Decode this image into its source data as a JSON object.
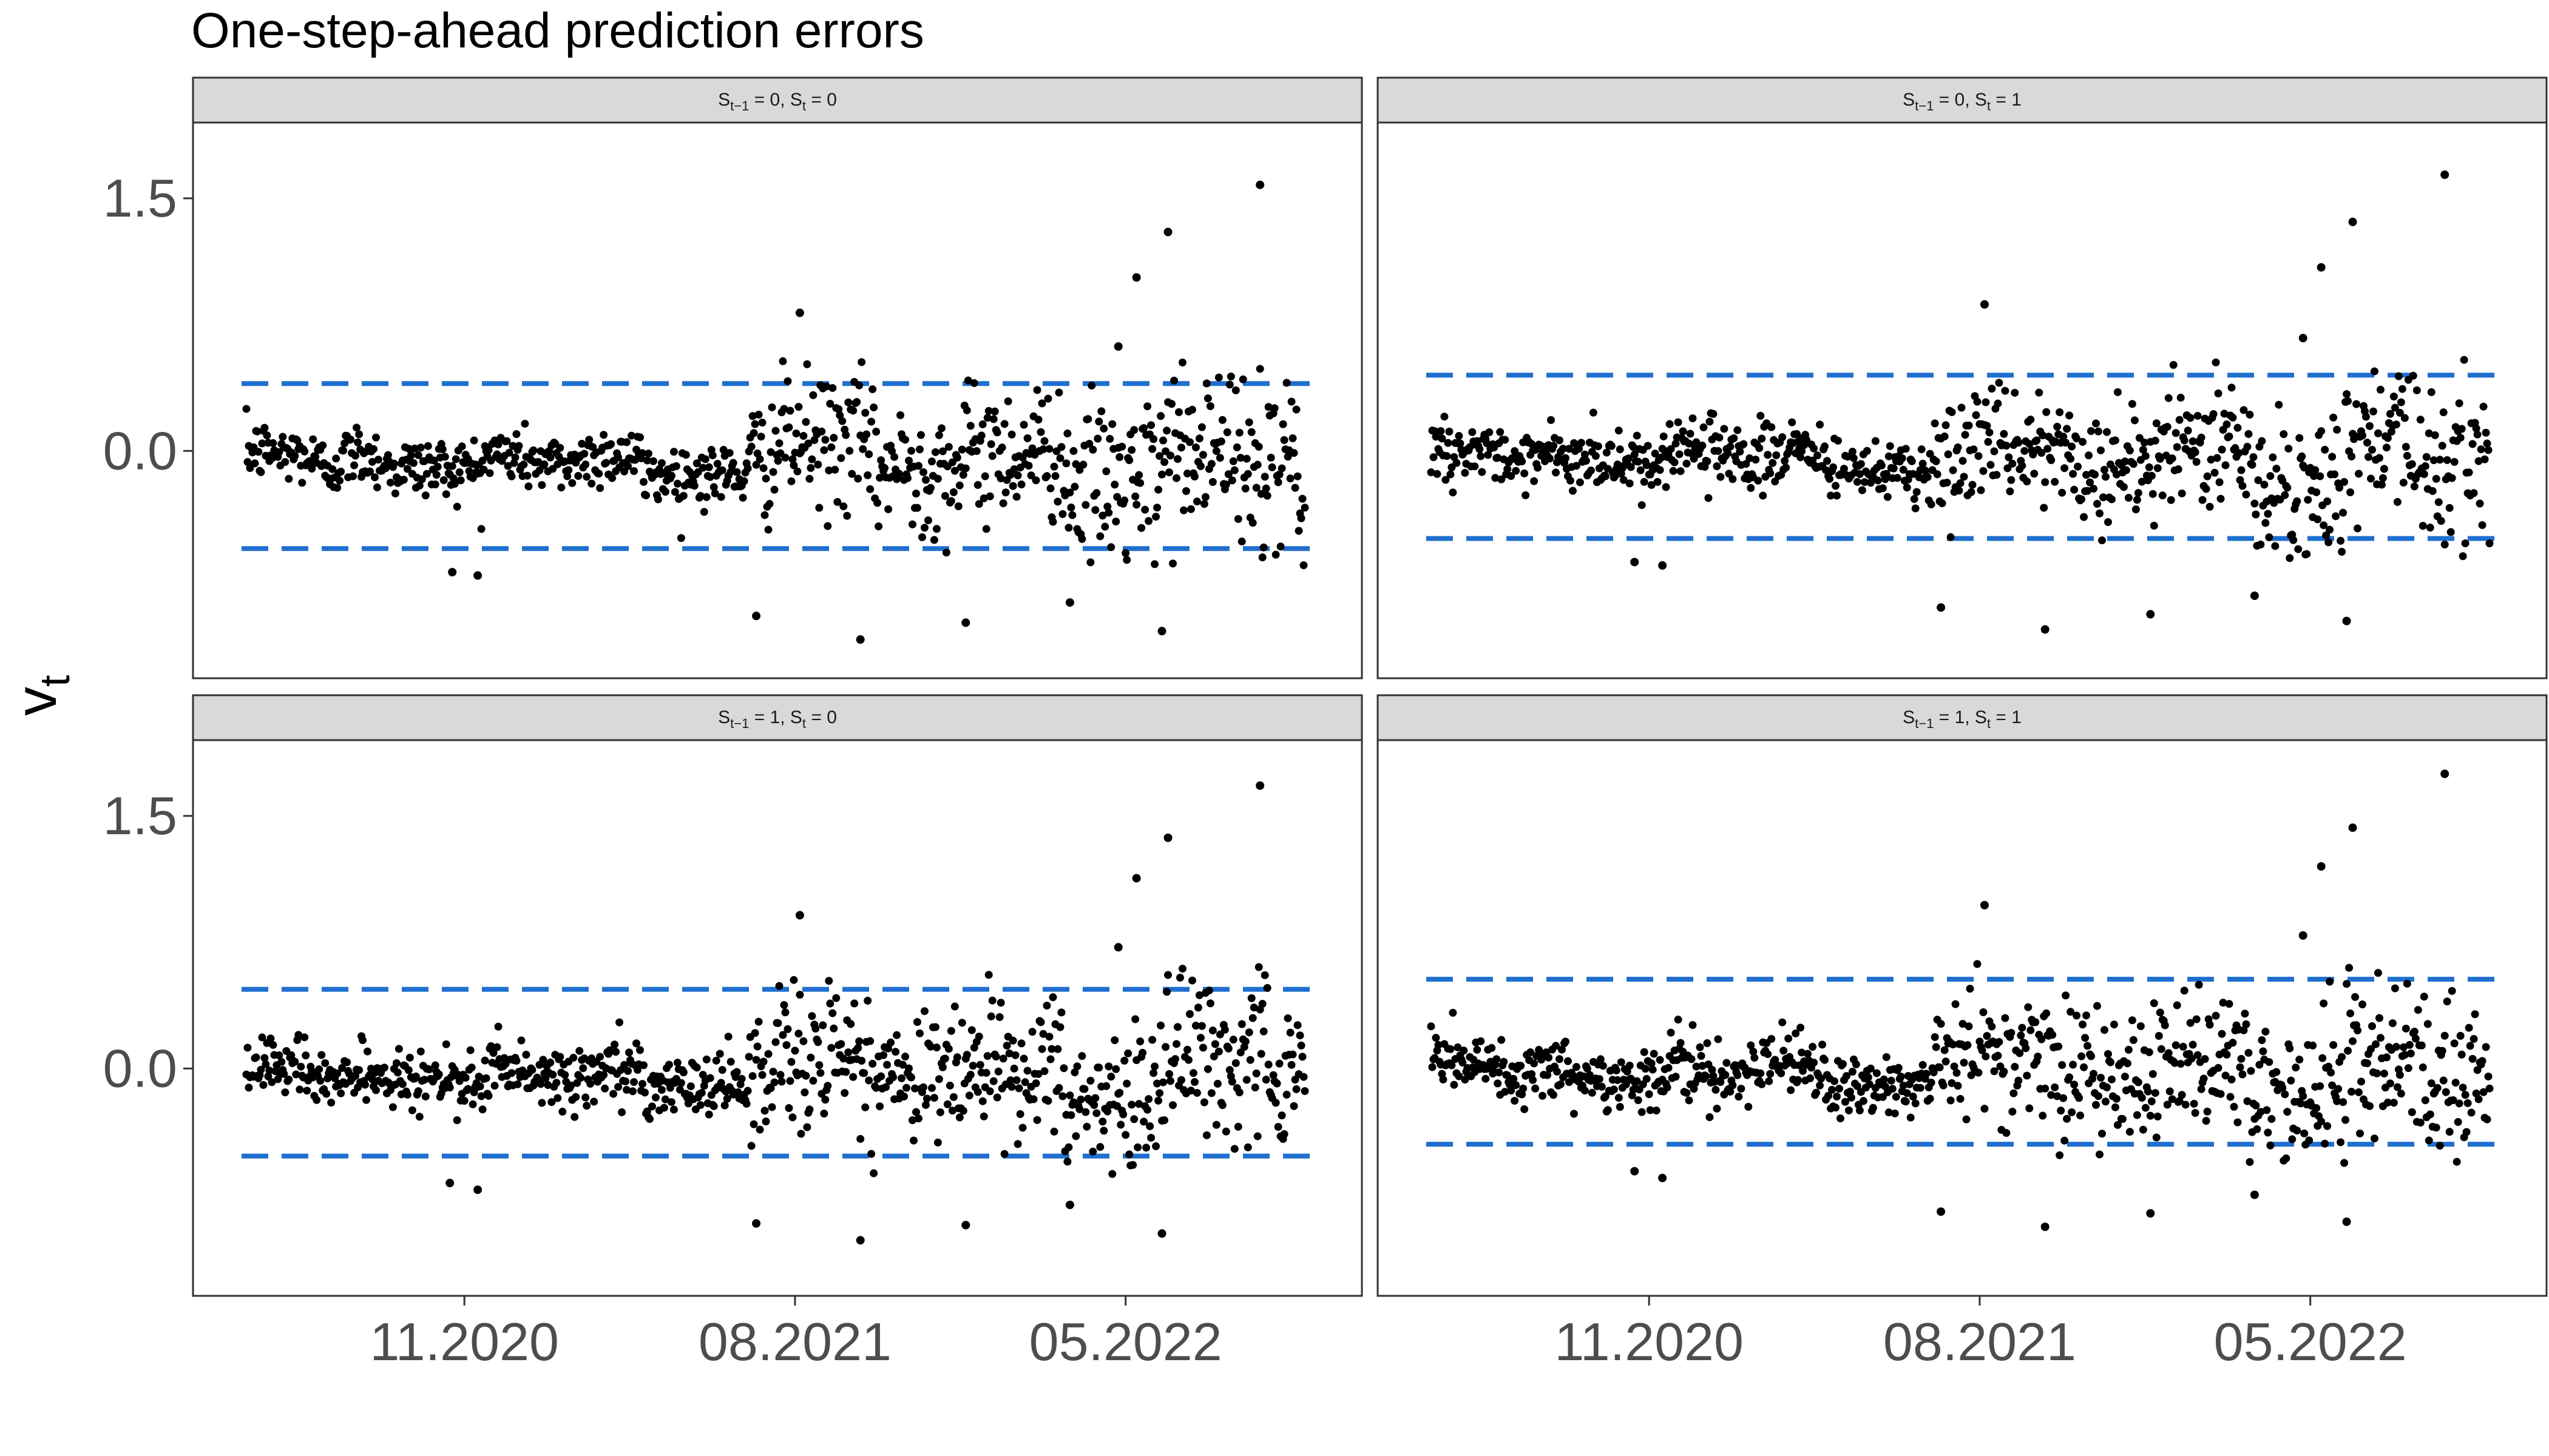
{
  "chart_data": {
    "type": "scatter",
    "title": "One-step-ahead prediction errors",
    "xlabel": "",
    "ylabel": "v",
    "ylabel_sub": "t",
    "x_ticks": [
      "11.2020",
      "08.2021",
      "05.2022"
    ],
    "y_ticks": [
      "0.0",
      "1.5"
    ],
    "grid": false,
    "point_color": "#000000",
    "band_color": "#1f6fcf",
    "panels": [
      {
        "strip": {
          "a": "S",
          "a_sub": "t−1",
          "b": " = 0, S",
          "b_sub": "t",
          "c": " = 0"
        },
        "band": [
          -0.58,
          0.4
        ],
        "outliers": [
          {
            "x": "2020-10-22",
            "y": -0.72
          },
          {
            "x": "2020-11-12",
            "y": -0.74
          },
          {
            "x": "2021-06-30",
            "y": -0.98
          },
          {
            "x": "2021-08-05",
            "y": 0.82
          },
          {
            "x": "2021-09-24",
            "y": -1.12
          },
          {
            "x": "2021-12-20",
            "y": -1.02
          },
          {
            "x": "2022-03-16",
            "y": -0.9
          },
          {
            "x": "2022-04-25",
            "y": 0.62
          },
          {
            "x": "2022-05-10",
            "y": 1.03
          },
          {
            "x": "2022-05-31",
            "y": -1.07
          },
          {
            "x": "2022-06-05",
            "y": 1.3
          },
          {
            "x": "2022-08-20",
            "y": 1.58
          }
        ]
      },
      {
        "strip": {
          "a": "S",
          "a_sub": "t−1",
          "b": " = 0, S",
          "b_sub": "t",
          "c": " = 1"
        },
        "band": [
          -0.52,
          0.45
        ],
        "outliers": [
          {
            "x": "2020-10-20",
            "y": -0.66
          },
          {
            "x": "2020-11-12",
            "y": -0.68
          },
          {
            "x": "2021-06-30",
            "y": -0.93
          },
          {
            "x": "2021-08-05",
            "y": 0.87
          },
          {
            "x": "2021-09-24",
            "y": -1.06
          },
          {
            "x": "2021-12-20",
            "y": -0.97
          },
          {
            "x": "2022-03-16",
            "y": -0.86
          },
          {
            "x": "2022-04-25",
            "y": 0.67
          },
          {
            "x": "2022-05-10",
            "y": 1.09
          },
          {
            "x": "2022-05-31",
            "y": -1.01
          },
          {
            "x": "2022-06-05",
            "y": 1.36
          },
          {
            "x": "2022-08-20",
            "y": 1.64
          }
        ]
      },
      {
        "strip": {
          "a": "S",
          "a_sub": "t−1",
          "b": " = 1, S",
          "b_sub": "t",
          "c": " = 0"
        },
        "band": [
          -0.52,
          0.47
        ],
        "outliers": [
          {
            "x": "2020-10-20",
            "y": -0.68
          },
          {
            "x": "2020-11-12",
            "y": -0.72
          },
          {
            "x": "2021-06-30",
            "y": -0.92
          },
          {
            "x": "2021-08-05",
            "y": 0.91
          },
          {
            "x": "2021-09-24",
            "y": -1.02
          },
          {
            "x": "2021-12-20",
            "y": -0.93
          },
          {
            "x": "2022-03-16",
            "y": -0.81
          },
          {
            "x": "2022-04-25",
            "y": 0.72
          },
          {
            "x": "2022-05-10",
            "y": 1.13
          },
          {
            "x": "2022-05-31",
            "y": -0.98
          },
          {
            "x": "2022-06-05",
            "y": 1.37
          },
          {
            "x": "2022-08-20",
            "y": 1.68
          }
        ]
      },
      {
        "strip": {
          "a": "S",
          "a_sub": "t−1",
          "b": " = 1, S",
          "b_sub": "t",
          "c": " = 1"
        },
        "band": [
          -0.45,
          0.53
        ],
        "outliers": [
          {
            "x": "2020-10-20",
            "y": -0.61
          },
          {
            "x": "2020-11-12",
            "y": -0.65
          },
          {
            "x": "2021-06-30",
            "y": -0.85
          },
          {
            "x": "2021-08-05",
            "y": 0.97
          },
          {
            "x": "2021-09-24",
            "y": -0.94
          },
          {
            "x": "2021-12-20",
            "y": -0.86
          },
          {
            "x": "2022-03-16",
            "y": -0.75
          },
          {
            "x": "2022-04-25",
            "y": 0.79
          },
          {
            "x": "2022-05-10",
            "y": 1.2
          },
          {
            "x": "2022-05-31",
            "y": -0.91
          },
          {
            "x": "2022-06-05",
            "y": 1.43
          },
          {
            "x": "2022-08-20",
            "y": 1.75
          }
        ]
      }
    ]
  }
}
